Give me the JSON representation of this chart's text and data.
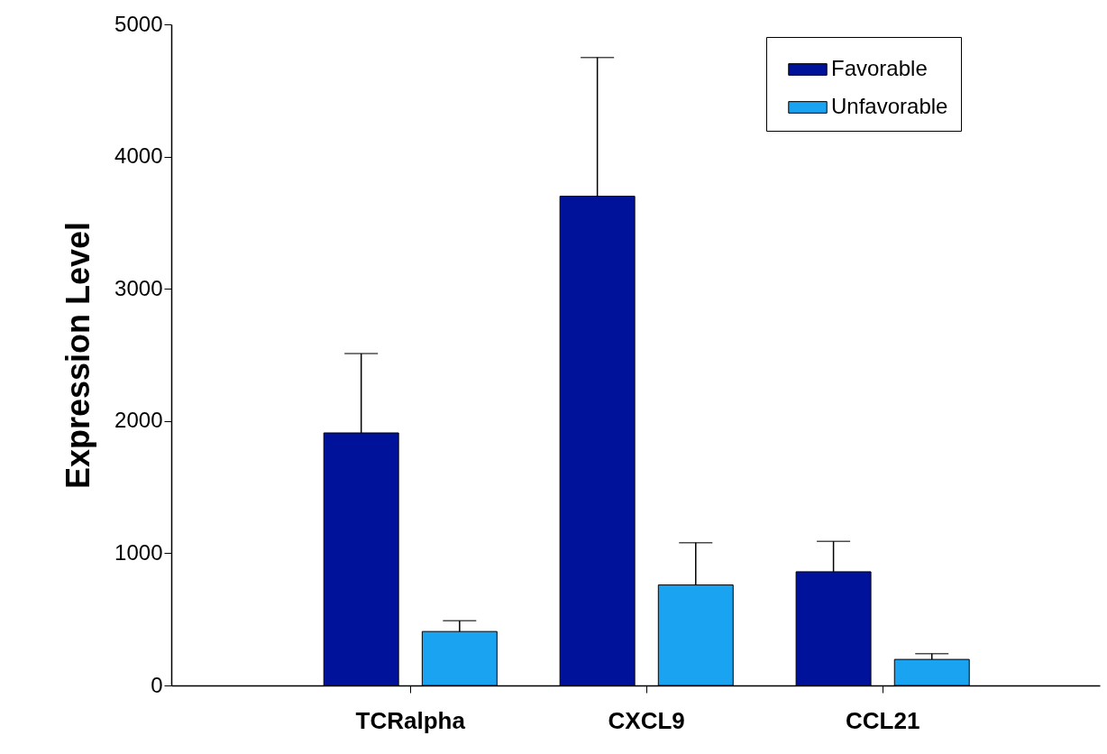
{
  "chart_data": {
    "type": "bar",
    "ylabel": "Expression Level",
    "categories": [
      "TCRalpha",
      "CXCL9",
      "CCL21"
    ],
    "series": [
      {
        "name": "Favorable",
        "color": "#00129a",
        "values": [
          1910,
          3700,
          860
        ],
        "errors": [
          [
            1910,
            2510
          ],
          [
            3700,
            4750
          ],
          [
            860,
            1090
          ]
        ]
      },
      {
        "name": "Unfavorable",
        "color": "#1aa3f0",
        "values": [
          408,
          760,
          197
        ],
        "errors": [
          [
            408,
            490
          ],
          [
            760,
            1080
          ],
          [
            197,
            240
          ]
        ]
      }
    ],
    "ylim": [
      0,
      5000
    ],
    "yticks": [
      0,
      1000,
      2000,
      3000,
      4000,
      5000
    ],
    "grid": false,
    "legend": "top right"
  }
}
